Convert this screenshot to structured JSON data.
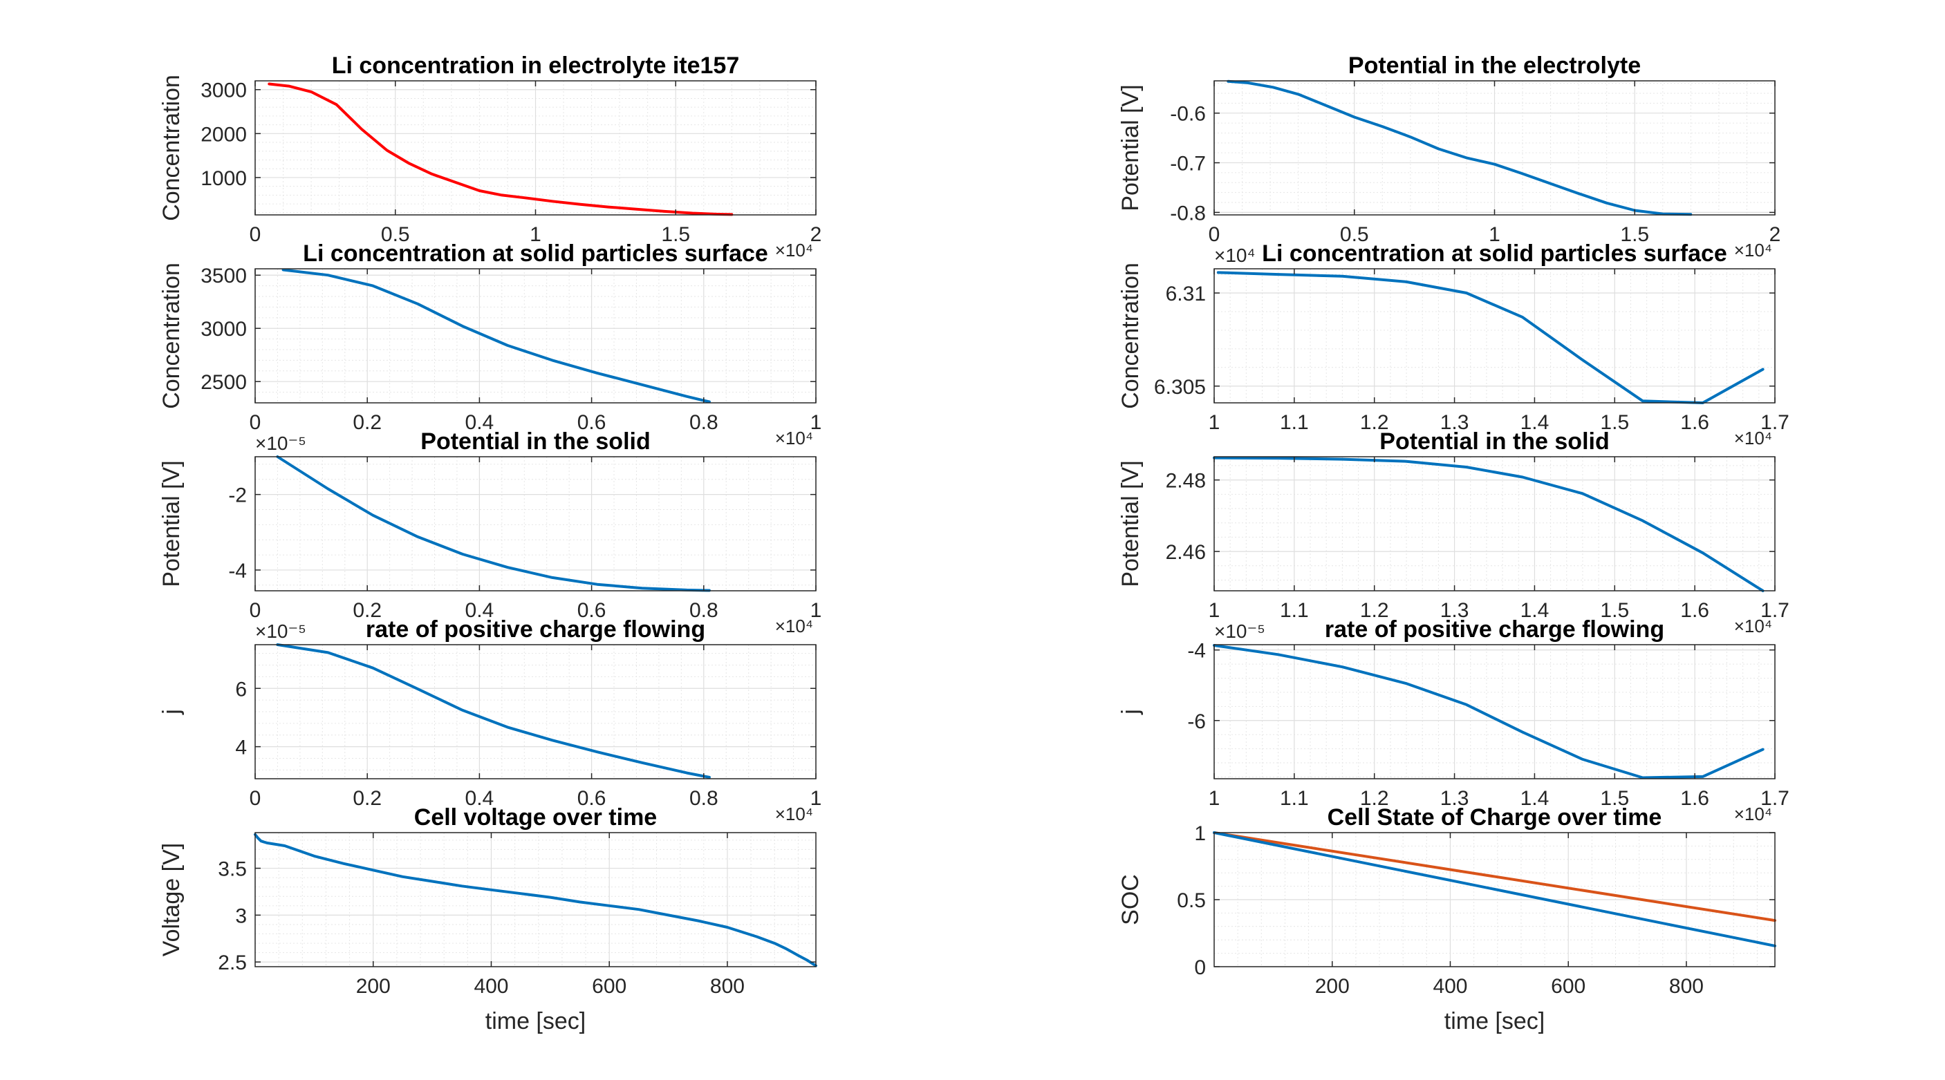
{
  "figure": {
    "background": "#ffffff"
  },
  "chart_data": [
    {
      "id": "c_le",
      "type": "line",
      "title": "Li concentration in electrolyte ite157",
      "xlabel": "",
      "ylabel": "Concentration",
      "xlim": [
        0,
        20000
      ],
      "ylim": [
        150,
        3200
      ],
      "xticks": [
        0,
        5000,
        10000,
        15000,
        20000
      ],
      "xtick_labels": [
        "0",
        "0.5",
        "1",
        "1.5",
        "2"
      ],
      "yticks": [
        1000,
        2000,
        3000
      ],
      "ytick_labels": [
        "1000",
        "2000",
        "3000"
      ],
      "x_exponent": "×10⁴",
      "y_exponent": "",
      "grid": true,
      "series": [
        {
          "color": "#ff0000",
          "x": [
            500,
            1200,
            2000,
            2900,
            3800,
            4700,
            5500,
            6300,
            7200,
            8000,
            8800,
            9600,
            10600,
            11600,
            12600,
            13600,
            14600,
            15600,
            16500,
            17000
          ],
          "y": [
            3130,
            3080,
            2950,
            2660,
            2100,
            1620,
            1320,
            1080,
            880,
            700,
            600,
            540,
            460,
            390,
            330,
            280,
            230,
            190,
            165,
            160
          ]
        }
      ]
    },
    {
      "id": "c_re",
      "type": "line",
      "title": "Potential in the electrolyte",
      "xlabel": "",
      "ylabel": "Potential [V]",
      "xlim": [
        0,
        20000
      ],
      "ylim": [
        -0.805,
        -0.535
      ],
      "xticks": [
        0,
        5000,
        10000,
        15000,
        20000
      ],
      "xtick_labels": [
        "0",
        "0.5",
        "1",
        "1.5",
        "2"
      ],
      "yticks": [
        -0.6,
        -0.7,
        -0.8
      ],
      "ytick_labels": [
        "-0.6",
        "-0.7",
        "-0.8"
      ],
      "x_exponent": "×10⁴",
      "y_exponent": "",
      "grid": true,
      "series": [
        {
          "color": "#0072bd",
          "x": [
            500,
            1200,
            2100,
            3000,
            4000,
            5000,
            6000,
            7000,
            8000,
            9000,
            10000,
            11000,
            12000,
            13000,
            14000,
            15000,
            16000,
            17000
          ],
          "y": [
            -0.536,
            -0.539,
            -0.548,
            -0.562,
            -0.585,
            -0.608,
            -0.627,
            -0.648,
            -0.672,
            -0.69,
            -0.703,
            -0.722,
            -0.742,
            -0.762,
            -0.781,
            -0.796,
            -0.803,
            -0.804
          ]
        }
      ]
    },
    {
      "id": "c_ls",
      "type": "line",
      "title": "Li concentration at solid particles surface",
      "xlabel": "",
      "ylabel": "Concentration",
      "xlim": [
        0,
        10000
      ],
      "ylim": [
        2300,
        3560
      ],
      "xticks": [
        0,
        2000,
        4000,
        6000,
        8000,
        10000
      ],
      "xtick_labels": [
        "0",
        "0.2",
        "0.4",
        "0.6",
        "0.8",
        "1"
      ],
      "yticks": [
        2500,
        3000,
        3500
      ],
      "ytick_labels": [
        "2500",
        "3000",
        "3500"
      ],
      "x_exponent": "×10⁴",
      "y_exponent": "",
      "grid": true,
      "series": [
        {
          "color": "#0072bd",
          "x": [
            500,
            1300,
            2100,
            2900,
            3700,
            4500,
            5300,
            6100,
            6900,
            7700,
            8100
          ],
          "y": [
            3550,
            3500,
            3400,
            3230,
            3020,
            2840,
            2700,
            2580,
            2470,
            2360,
            2310
          ]
        }
      ]
    },
    {
      "id": "c_rs",
      "type": "line",
      "title": "Li concentration at solid particles surface",
      "xlabel": "",
      "ylabel": "Concentration",
      "xlim": [
        10000,
        17000
      ],
      "ylim": [
        6.3041,
        6.3113
      ],
      "xticks": [
        10000,
        11000,
        12000,
        13000,
        14000,
        15000,
        16000,
        17000
      ],
      "xtick_labels": [
        "1",
        "1.1",
        "1.2",
        "1.3",
        "1.4",
        "1.5",
        "1.6",
        "1.7"
      ],
      "yticks": [
        6.305,
        6.31
      ],
      "ytick_labels": [
        "6.305",
        "6.31"
      ],
      "x_exponent": "×10⁴",
      "y_exponent": "×10⁴",
      "grid": true,
      "series": [
        {
          "color": "#0072bd",
          "x": [
            10050,
            10800,
            11600,
            12400,
            13150,
            13850,
            14600,
            15350,
            16100,
            16850
          ],
          "y": [
            6.3111,
            6.311,
            6.3109,
            6.3106,
            6.31,
            6.3087,
            6.3064,
            6.3042,
            6.3041,
            6.3059
          ]
        }
      ]
    },
    {
      "id": "c_ps",
      "type": "line",
      "title": "Potential in the solid",
      "xlabel": "",
      "ylabel": "Potential [V]",
      "xlim": [
        0,
        10000
      ],
      "ylim": [
        -4.55,
        -1.0
      ],
      "xticks": [
        0,
        2000,
        4000,
        6000,
        8000,
        10000
      ],
      "xtick_labels": [
        "0",
        "0.2",
        "0.4",
        "0.6",
        "0.8",
        "1"
      ],
      "yticks": [
        -2,
        -4
      ],
      "ytick_labels": [
        "-2",
        "-4"
      ],
      "x_exponent": "×10⁴",
      "y_exponent": "×10⁻⁵",
      "grid": true,
      "series": [
        {
          "color": "#0072bd",
          "x": [
            400,
            1300,
            2100,
            2900,
            3700,
            4500,
            5300,
            6100,
            6900,
            7700,
            8100
          ],
          "y": [
            -1.0,
            -1.85,
            -2.55,
            -3.12,
            -3.58,
            -3.93,
            -4.2,
            -4.38,
            -4.48,
            -4.53,
            -4.54
          ]
        }
      ]
    },
    {
      "id": "c_rps",
      "type": "line",
      "title": "Potential in the solid",
      "xlabel": "",
      "ylabel": "Potential [V]",
      "xlim": [
        10000,
        17000
      ],
      "ylim": [
        2.449,
        2.4865
      ],
      "xticks": [
        10000,
        11000,
        12000,
        13000,
        14000,
        15000,
        16000,
        17000
      ],
      "xtick_labels": [
        "1",
        "1.1",
        "1.2",
        "1.3",
        "1.4",
        "1.5",
        "1.6",
        "1.7"
      ],
      "yticks": [
        2.46,
        2.48
      ],
      "ytick_labels": [
        "2.46",
        "2.48"
      ],
      "x_exponent": "×10⁴",
      "y_exponent": "",
      "grid": true,
      "series": [
        {
          "color": "#0072bd",
          "x": [
            10000,
            10800,
            11600,
            12400,
            13150,
            13850,
            14600,
            15350,
            16100,
            16850
          ],
          "y": [
            2.4862,
            2.4861,
            2.4858,
            2.4852,
            2.4836,
            2.4808,
            2.4762,
            2.4686,
            2.4596,
            2.449
          ]
        }
      ]
    },
    {
      "id": "c_j",
      "type": "line",
      "title": "rate of positive charge flowing",
      "xlabel": "",
      "ylabel": "j",
      "xlim": [
        0,
        10000
      ],
      "ylim": [
        2.9,
        7.5
      ],
      "xticks": [
        0,
        2000,
        4000,
        6000,
        8000,
        10000
      ],
      "xtick_labels": [
        "0",
        "0.2",
        "0.4",
        "0.6",
        "0.8",
        "1"
      ],
      "yticks": [
        4,
        6
      ],
      "ytick_labels": [
        "4",
        "6"
      ],
      "x_exponent": "×10⁴",
      "y_exponent": "×10⁻⁵",
      "grid": true,
      "series": [
        {
          "color": "#0072bd",
          "x": [
            400,
            1300,
            2100,
            2900,
            3700,
            4500,
            5300,
            6100,
            6900,
            7700,
            8100
          ],
          "y": [
            7.5,
            7.23,
            6.7,
            5.98,
            5.25,
            4.67,
            4.22,
            3.82,
            3.45,
            3.1,
            2.95
          ]
        }
      ]
    },
    {
      "id": "c_rj",
      "type": "line",
      "title": "rate of positive charge flowing",
      "xlabel": "",
      "ylabel": "j",
      "xlim": [
        10000,
        17000
      ],
      "ylim": [
        -7.65,
        -3.85
      ],
      "xticks": [
        10000,
        11000,
        12000,
        13000,
        14000,
        15000,
        16000,
        17000
      ],
      "xtick_labels": [
        "1",
        "1.1",
        "1.2",
        "1.3",
        "1.4",
        "1.5",
        "1.6",
        "1.7"
      ],
      "yticks": [
        -4,
        -6
      ],
      "ytick_labels": [
        "-4",
        "-6"
      ],
      "x_exponent": "×10⁴",
      "y_exponent": "×10⁻⁵",
      "grid": true,
      "series": [
        {
          "color": "#0072bd",
          "x": [
            10000,
            10800,
            11600,
            12400,
            13150,
            13850,
            14600,
            15350,
            16100,
            16850
          ],
          "y": [
            -3.87,
            -4.13,
            -4.48,
            -4.95,
            -5.55,
            -6.33,
            -7.1,
            -7.62,
            -7.59,
            -6.82
          ]
        }
      ]
    },
    {
      "id": "c_v",
      "type": "line",
      "title": "Cell voltage over time",
      "xlabel": "time [sec]",
      "ylabel": "Voltage [V]",
      "xlim": [
        0,
        950
      ],
      "ylim": [
        2.45,
        3.88
      ],
      "xticks": [
        200,
        400,
        600,
        800
      ],
      "xtick_labels": [
        "200",
        "400",
        "600",
        "800"
      ],
      "yticks": [
        2.5,
        3,
        3.5
      ],
      "ytick_labels": [
        "2.5",
        "3",
        "3.5"
      ],
      "x_exponent": "",
      "y_exponent": "",
      "grid": true,
      "series": [
        {
          "color": "#0072bd",
          "x": [
            0,
            5,
            10,
            20,
            50,
            100,
            150,
            200,
            250,
            300,
            350,
            400,
            450,
            500,
            550,
            600,
            650,
            700,
            750,
            800,
            850,
            880,
            900,
            920,
            935,
            945,
            950
          ],
          "y": [
            3.86,
            3.82,
            3.79,
            3.77,
            3.74,
            3.63,
            3.55,
            3.48,
            3.41,
            3.36,
            3.31,
            3.27,
            3.23,
            3.19,
            3.14,
            3.1,
            3.06,
            3.0,
            2.94,
            2.87,
            2.77,
            2.7,
            2.64,
            2.57,
            2.52,
            2.48,
            2.46
          ]
        }
      ]
    },
    {
      "id": "c_soc",
      "type": "line",
      "title": "Cell State of Charge over time",
      "xlabel": "time [sec]",
      "ylabel": "SOC",
      "xlim": [
        0,
        950
      ],
      "ylim": [
        0,
        1.0
      ],
      "xticks": [
        200,
        400,
        600,
        800
      ],
      "xtick_labels": [
        "200",
        "400",
        "600",
        "800"
      ],
      "yticks": [
        0,
        0.5,
        1
      ],
      "ytick_labels": [
        "0",
        "0.5",
        "1"
      ],
      "x_exponent": "",
      "y_exponent": "",
      "grid": true,
      "series": [
        {
          "color": "#d95319",
          "x": [
            0,
            950
          ],
          "y": [
            1.0,
            0.345
          ]
        },
        {
          "color": "#0072bd",
          "x": [
            0,
            950
          ],
          "y": [
            1.0,
            0.155
          ]
        }
      ]
    }
  ]
}
